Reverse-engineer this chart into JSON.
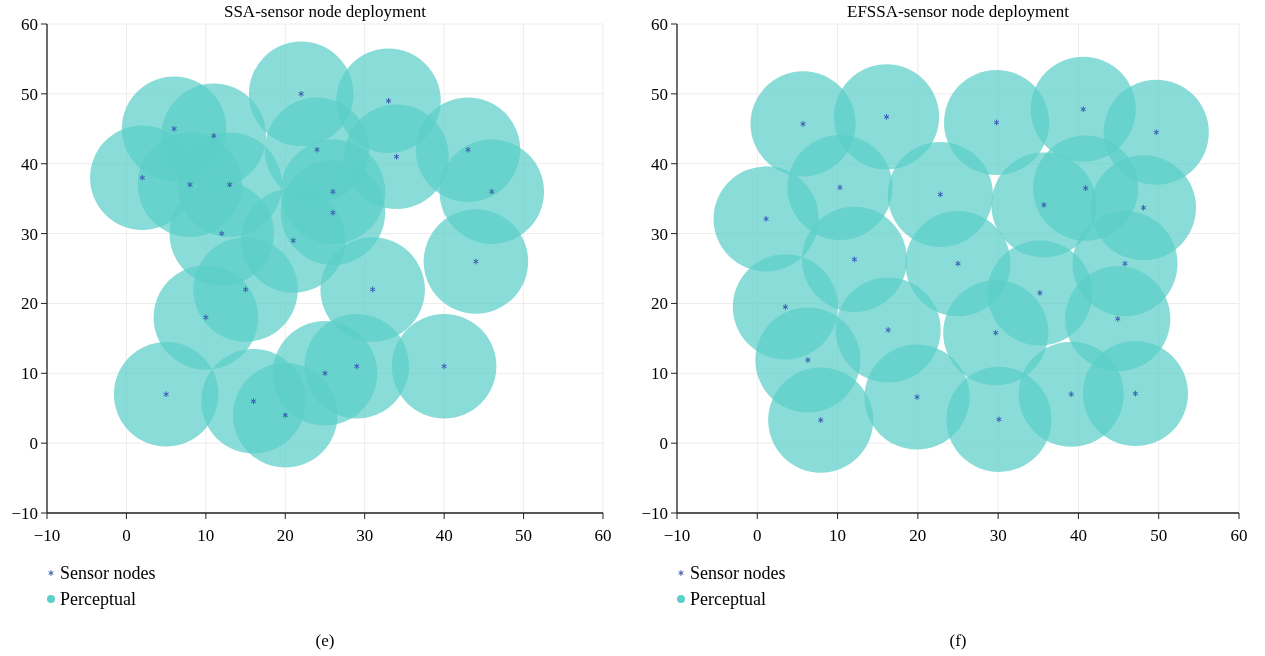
{
  "chart_data": [
    {
      "type": "scatter",
      "title": "SSA-sensor node deployment",
      "xlim": [
        -10,
        60
      ],
      "ylim": [
        -10,
        60
      ],
      "xticks": [
        -10,
        0,
        10,
        20,
        30,
        40,
        50,
        60
      ],
      "yticks": [
        -10,
        0,
        10,
        20,
        30,
        40,
        50,
        60
      ],
      "grid": true,
      "legend": "bottom left",
      "annotations": [
        "(e)"
      ],
      "series": [
        {
          "name": "Sensor nodes",
          "type": "scatter",
          "marker": "cross",
          "color": "#3b5bb5",
          "x": [
            6,
            11,
            22,
            33,
            2,
            8,
            13,
            24,
            34,
            43,
            46,
            26,
            26,
            12,
            21,
            44,
            15,
            31,
            10,
            5,
            16,
            20,
            25,
            29,
            40
          ],
          "values": [
            45,
            44,
            50,
            49,
            38,
            37,
            37,
            42,
            41,
            42,
            36,
            36,
            33,
            30,
            29,
            26,
            22,
            22,
            18,
            7,
            6,
            4,
            10,
            11,
            11
          ]
        },
        {
          "name": "Perceptual",
          "type": "bubble",
          "marker": "circle",
          "color": "#5ccfc8",
          "x": [
            6,
            11,
            22,
            33,
            2,
            8,
            13,
            24,
            34,
            43,
            46,
            26,
            26,
            12,
            21,
            44,
            15,
            31,
            10,
            5,
            16,
            20,
            25,
            29,
            40
          ],
          "values": [
            45,
            44,
            50,
            49,
            38,
            37,
            37,
            42,
            41,
            42,
            36,
            36,
            33,
            30,
            29,
            26,
            22,
            22,
            18,
            7,
            6,
            4,
            10,
            11,
            11
          ],
          "sizes": [
            1,
            1,
            1,
            1,
            1,
            1,
            1,
            1,
            1,
            1,
            1,
            1,
            1,
            1,
            1,
            1,
            1,
            1,
            1,
            1,
            1,
            1,
            1,
            1,
            1
          ]
        }
      ]
    },
    {
      "type": "scatter",
      "title": "EFSSA-sensor node deployment",
      "xlim": [
        -10,
        60
      ],
      "ylim": [
        -10,
        60
      ],
      "xticks": [
        -10,
        0,
        10,
        20,
        30,
        40,
        50,
        60
      ],
      "yticks": [
        -10,
        0,
        10,
        20,
        30,
        40,
        50,
        60
      ],
      "grid": true,
      "legend": "bottom left",
      "annotations": [
        "(f)"
      ],
      "series": [
        {
          "name": "Sensor nodes",
          "type": "scatter",
          "marker": "cross",
          "color": "#3b5bb5",
          "x": [
            5.7,
            16.1,
            29.8,
            40.6,
            49.7,
            10.3,
            22.8,
            35.7,
            40.9,
            48.1,
            1.1,
            12.1,
            25.0,
            35.2,
            45.8,
            3.5,
            16.3,
            29.7,
            44.9,
            6.3,
            7.9,
            19.9,
            30.1,
            39.1,
            47.1
          ],
          "values": [
            45.7,
            46.7,
            45.9,
            47.8,
            44.5,
            36.6,
            35.6,
            34.1,
            36.5,
            33.7,
            32.1,
            26.3,
            25.7,
            21.5,
            25.7,
            19.5,
            16.2,
            15.8,
            17.8,
            11.9,
            3.3,
            6.6,
            3.4,
            7.0,
            7.1
          ]
        },
        {
          "name": "Perceptual",
          "type": "bubble",
          "marker": "circle",
          "color": "#5ccfc8",
          "x": [
            5.7,
            16.1,
            29.8,
            40.6,
            49.7,
            10.3,
            22.8,
            35.7,
            40.9,
            48.1,
            1.1,
            12.1,
            25.0,
            35.2,
            45.8,
            3.5,
            16.3,
            29.7,
            44.9,
            6.3,
            7.9,
            19.9,
            30.1,
            39.1,
            47.1
          ],
          "values": [
            45.7,
            46.7,
            45.9,
            47.8,
            44.5,
            36.6,
            35.6,
            34.1,
            36.5,
            33.7,
            32.1,
            26.3,
            25.7,
            21.5,
            25.7,
            19.5,
            16.2,
            15.8,
            17.8,
            11.9,
            3.3,
            6.6,
            3.4,
            7.0,
            7.1
          ],
          "sizes": [
            1,
            1,
            1,
            1,
            1,
            1,
            1,
            1,
            1,
            1,
            1,
            1,
            1,
            1,
            1,
            1,
            1,
            1,
            1,
            1,
            1,
            1,
            1,
            1,
            1
          ]
        }
      ]
    }
  ]
}
